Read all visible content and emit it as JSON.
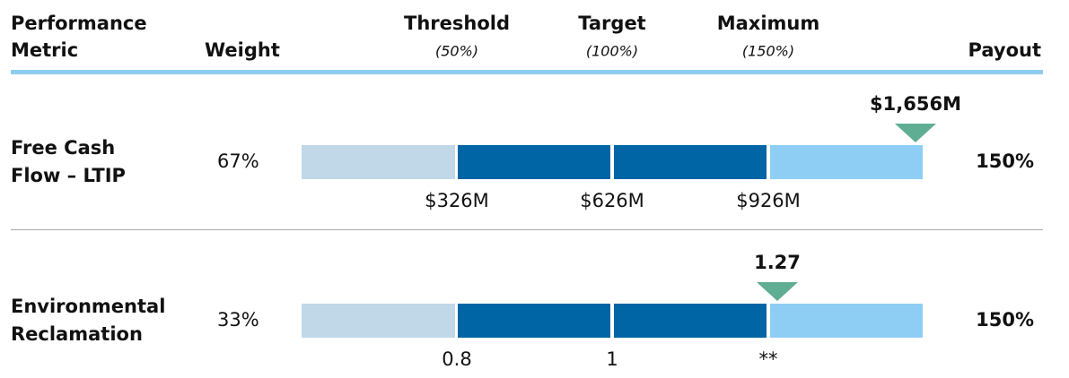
{
  "header": {
    "metric": [
      "Performance",
      "Metric"
    ],
    "weight": "Weight",
    "levels": [
      {
        "name": "Threshold",
        "pct": "(50%)"
      },
      {
        "name": "Target",
        "pct": "(100%)"
      },
      {
        "name": "Maximum",
        "pct": "(150%)"
      }
    ],
    "payout": "Payout"
  },
  "rows": [
    {
      "metric": [
        "Free Cash",
        "Flow – LTIP"
      ],
      "weight": "67%",
      "result": "$1,656M",
      "ticks": [
        "$326M",
        "$626M",
        "$926M"
      ],
      "payout": "150%"
    },
    {
      "metric": [
        "Environmental",
        "Reclamation"
      ],
      "weight": "33%",
      "result": "1.27",
      "ticks": [
        "0.8",
        "1",
        "**"
      ],
      "payout": "150%"
    }
  ]
}
